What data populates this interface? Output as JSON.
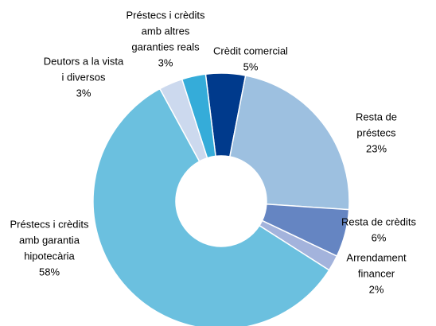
{
  "chart_data": {
    "type": "donut",
    "categories": [
      [
        "Crèdit comercial"
      ],
      [
        "Resta de",
        "préstecs"
      ],
      [
        "Resta de crèdits"
      ],
      [
        "Arrendament",
        "financer"
      ],
      [
        "Préstecs i crèdits",
        "amb garantia",
        "hipotecària"
      ],
      [
        "Deutors a la vista",
        "i diversos"
      ],
      [
        "Préstecs i crèdits",
        "amb altres",
        "garanties reals"
      ]
    ],
    "values": [
      5,
      23,
      6,
      2,
      58,
      3,
      3
    ],
    "value_labels": [
      "5%",
      "23%",
      "6%",
      "2%",
      "58%",
      "3%",
      "3%"
    ],
    "colors": [
      "#003a8c",
      "#9dc0e0",
      "#6585c2",
      "#a3b3dc",
      "#6bc0df",
      "#ccd9ee",
      "#35acd9"
    ]
  }
}
